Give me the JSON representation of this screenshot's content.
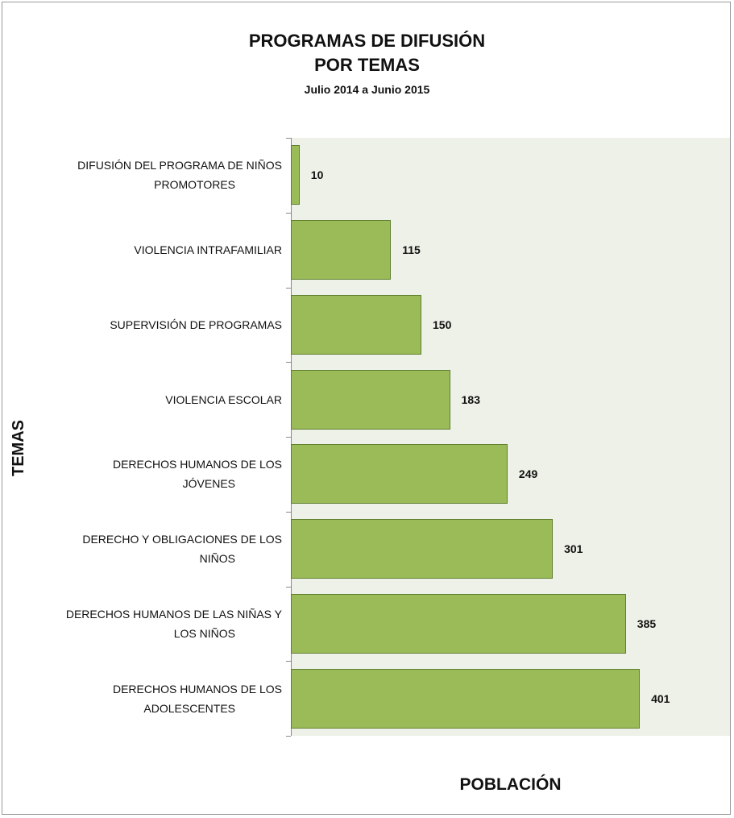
{
  "chart_data": {
    "type": "bar",
    "orientation": "horizontal",
    "title": [
      "PROGRAMAS DE DIFUSIÓN",
      "POR TEMAS"
    ],
    "subtitle": "Julio 2014 a Junio 2015",
    "xlabel": "POBLACIÓN",
    "ylabel": "TEMAS",
    "categories": [
      [
        "DIFUSIÓN DEL PROGRAMA DE NIÑOS",
        "PROMOTORES"
      ],
      [
        "VIOLENCIA INTRAFAMILIAR"
      ],
      [
        "SUPERVISIÓN DE PROGRAMAS"
      ],
      [
        "VIOLENCIA ESCOLAR"
      ],
      [
        "DERECHOS HUMANOS DE LOS",
        "JÓVENES"
      ],
      [
        "DERECHO Y OBLIGACIONES DE LOS",
        "NIÑOS"
      ],
      [
        "DERECHOS HUMANOS DE LAS NIÑAS Y",
        "LOS NIÑOS"
      ],
      [
        "DERECHOS HUMANOS DE LOS",
        "ADOLESCENTES"
      ]
    ],
    "values": [
      10,
      115,
      150,
      183,
      249,
      301,
      385,
      401
    ],
    "data_labels": [
      "10",
      "115",
      "150",
      "183",
      "249",
      "301",
      "385",
      "401"
    ],
    "xlim": [
      0,
      500
    ],
    "grid": false,
    "legend": "none",
    "colors": {
      "bar": "#9bbb59",
      "bar_border": "#5f7f2f",
      "plot_background": "#eef1e7"
    }
  }
}
